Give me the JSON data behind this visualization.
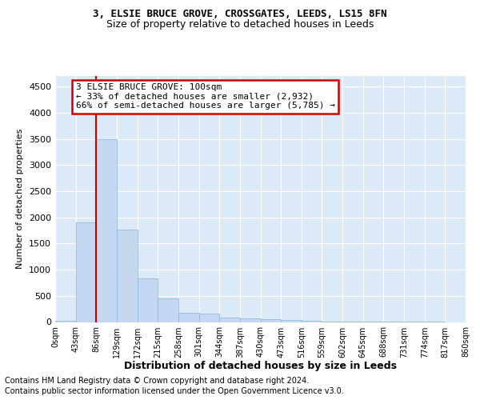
{
  "title": "3, ELSIE BRUCE GROVE, CROSSGATES, LEEDS, LS15 8FN",
  "subtitle": "Size of property relative to detached houses in Leeds",
  "xlabel": "Distribution of detached houses by size in Leeds",
  "ylabel": "Number of detached properties",
  "bar_values": [
    30,
    1900,
    3500,
    1760,
    840,
    450,
    170,
    165,
    90,
    75,
    50,
    40,
    30,
    15,
    10,
    5,
    5,
    5,
    5,
    0
  ],
  "bar_color": "#c5d8f0",
  "bar_edge_color": "#8ab4d8",
  "x_labels": [
    "0sqm",
    "43sqm",
    "86sqm",
    "129sqm",
    "172sqm",
    "215sqm",
    "258sqm",
    "301sqm",
    "344sqm",
    "387sqm",
    "430sqm",
    "473sqm",
    "516sqm",
    "559sqm",
    "602sqm",
    "645sqm",
    "688sqm",
    "731sqm",
    "774sqm",
    "817sqm",
    "860sqm"
  ],
  "vline_x": 2,
  "vline_color": "#cc0000",
  "ylim": [
    0,
    4700
  ],
  "yticks": [
    0,
    500,
    1000,
    1500,
    2000,
    2500,
    3000,
    3500,
    4000,
    4500
  ],
  "annotation_text": "3 ELSIE BRUCE GROVE: 100sqm\n← 33% of detached houses are smaller (2,932)\n66% of semi-detached houses are larger (5,785) →",
  "annotation_box_facecolor": "#ffffff",
  "annotation_box_edgecolor": "#cc0000",
  "footer_line1": "Contains HM Land Registry data © Crown copyright and database right 2024.",
  "footer_line2": "Contains public sector information licensed under the Open Government Licence v3.0.",
  "axes_bg_color": "#dce9f7",
  "fig_bg_color": "#ffffff",
  "grid_color": "#ffffff",
  "title_fontsize": 9,
  "subtitle_fontsize": 9,
  "xlabel_fontsize": 9,
  "ylabel_fontsize": 8,
  "tick_fontsize": 8,
  "xtick_fontsize": 7,
  "annotation_fontsize": 8,
  "footer_fontsize": 7
}
